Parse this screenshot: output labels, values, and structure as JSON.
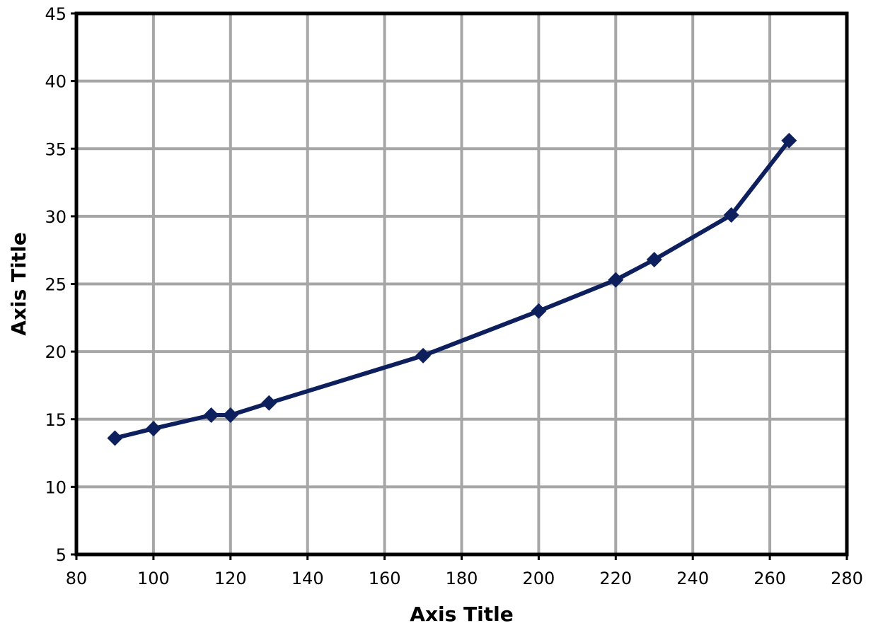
{
  "chart_data": {
    "type": "line",
    "title": "",
    "xlabel": "Axis Title",
    "ylabel": "Axis Title",
    "xlim": [
      80,
      280
    ],
    "ylim": [
      5,
      45
    ],
    "x_ticks": [
      80,
      100,
      120,
      140,
      160,
      180,
      200,
      220,
      240,
      260,
      280
    ],
    "y_ticks": [
      5,
      10,
      15,
      20,
      25,
      30,
      35,
      40,
      45
    ],
    "grid": true,
    "legend": "none",
    "marker": "diamond",
    "line_color": "#0d1f5c",
    "grid_color": "#a6a6a6",
    "series": [
      {
        "x": [
          90,
          100,
          115,
          120,
          130,
          170,
          200,
          220,
          230,
          250,
          265
        ],
        "y": [
          13.6,
          14.3,
          15.3,
          15.3,
          16.2,
          19.7,
          23.0,
          25.3,
          26.8,
          30.1,
          35.6
        ]
      }
    ]
  }
}
